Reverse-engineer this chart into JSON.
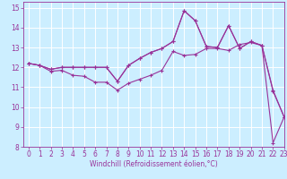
{
  "xlabel": "Windchill (Refroidissement éolien,°C)",
  "bg_color": "#cceeff",
  "line_color": "#993399",
  "grid_color": "#ffffff",
  "xlim": [
    -0.5,
    23
  ],
  "ylim": [
    8,
    15.3
  ],
  "xticks": [
    0,
    1,
    2,
    3,
    4,
    5,
    6,
    7,
    8,
    9,
    10,
    11,
    12,
    13,
    14,
    15,
    16,
    17,
    18,
    19,
    20,
    21,
    22,
    23
  ],
  "yticks": [
    8,
    9,
    10,
    11,
    12,
    13,
    14,
    15
  ],
  "line1_x": [
    0,
    1,
    2,
    3,
    4,
    5,
    6,
    7,
    8,
    9,
    10,
    11,
    12,
    13,
    14,
    15,
    16,
    17,
    18,
    19,
    20,
    21,
    22,
    23
  ],
  "line1_y": [
    12.2,
    12.1,
    11.8,
    11.85,
    11.6,
    11.55,
    11.25,
    11.25,
    10.85,
    11.2,
    11.4,
    11.6,
    11.85,
    12.8,
    12.6,
    12.65,
    12.95,
    12.95,
    12.85,
    13.15,
    13.25,
    13.1,
    10.8,
    9.5
  ],
  "line2_x": [
    0,
    1,
    2,
    3,
    4,
    5,
    6,
    7,
    8,
    9,
    10,
    11,
    12,
    13,
    14,
    15,
    16,
    17,
    18,
    19,
    20,
    21,
    22,
    23
  ],
  "line2_y": [
    12.2,
    12.1,
    11.9,
    12.0,
    12.0,
    12.0,
    12.0,
    12.0,
    11.3,
    12.1,
    12.45,
    12.75,
    12.95,
    13.3,
    14.85,
    14.35,
    13.05,
    13.0,
    14.1,
    12.95,
    13.3,
    13.1,
    10.85,
    9.5
  ],
  "line3_x": [
    0,
    1,
    2,
    3,
    4,
    5,
    6,
    7,
    8,
    9,
    10,
    11,
    12,
    13,
    14,
    15,
    16,
    17,
    18,
    19,
    20,
    21,
    22,
    23
  ],
  "line3_y": [
    12.2,
    12.1,
    11.9,
    12.0,
    12.0,
    12.0,
    12.0,
    12.0,
    11.3,
    12.1,
    12.45,
    12.75,
    12.95,
    13.3,
    14.85,
    14.35,
    13.05,
    13.0,
    14.1,
    12.95,
    13.3,
    13.1,
    8.2,
    9.5
  ],
  "marker_size": 3.5,
  "linewidth": 0.8,
  "tick_fontsize": 5.5,
  "xlabel_fontsize": 5.5
}
